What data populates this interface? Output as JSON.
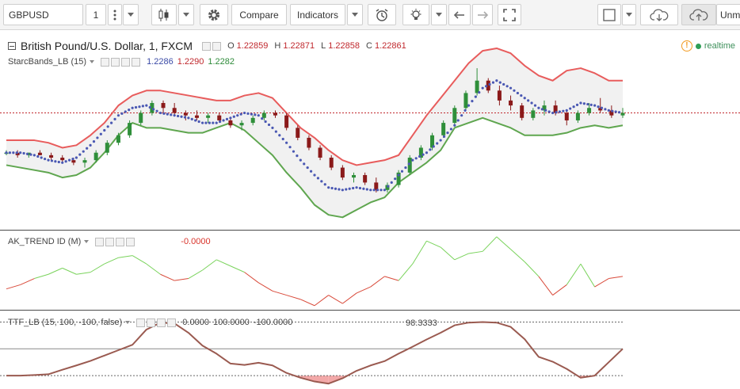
{
  "toolbar": {
    "symbol": "GBPUSD",
    "interval": "1",
    "compare_label": "Compare",
    "indicators_label": "Indicators",
    "cut_text": "Unm"
  },
  "main_legend": {
    "title": "British Pound/U.S. Dollar, 1, FXCM",
    "o_label": "O",
    "o_value": "1.22859",
    "h_label": "H",
    "h_value": "1.22871",
    "l_label": "L",
    "l_value": "1.22858",
    "c_label": "C",
    "c_value": "1.22861",
    "realtime": "realtime"
  },
  "starc_legend": {
    "name": "StarcBands_LB (15)",
    "mid": "1.2286",
    "upper": "1.2290",
    "lower": "1.2282"
  },
  "ak_legend": {
    "name": "AK_TREND ID (M)",
    "value": "-0.0000"
  },
  "ttf_legend": {
    "name": "TTF_LB (15, 100, -100, false)",
    "v1": "0.0000",
    "v2": "100.0000",
    "v3": "-100.0000",
    "annotation": "98.3333"
  },
  "colors": {
    "up_candle": "#2f8f3a",
    "down_candle": "#8b1a1a",
    "upper_band": "#e85c5c",
    "lower_band": "#5fa64f",
    "mid_dots": "#4a58b3",
    "ak_pos": "#7ad35c",
    "ak_neg": "#d94a3a",
    "ttf_line": "#9a5a50",
    "ttf_pos_fill": "#a8d8a0",
    "ttf_neg_fill": "#f2a8a8"
  },
  "chart_data": [
    {
      "type": "candlestick",
      "series": [
        {
          "name": "StarcBands_LB (15)",
          "x": [
            0,
            4,
            8,
            12,
            16,
            20,
            24,
            28,
            32,
            36,
            40,
            44,
            48,
            52,
            56,
            60,
            64,
            68,
            72,
            76,
            80,
            84,
            88,
            92,
            96,
            100,
            104,
            108,
            112,
            116,
            120,
            124,
            128,
            132,
            136,
            140,
            144,
            148,
            152,
            156,
            160,
            164,
            168,
            172,
            176
          ],
          "upper": [
            1.2276,
            1.2276,
            1.2276,
            1.2275,
            1.2273,
            1.2274,
            1.2278,
            1.2283,
            1.229,
            1.2294,
            1.2296,
            1.2296,
            1.2295,
            1.2294,
            1.2293,
            1.2292,
            1.2292,
            1.2294,
            1.2295,
            1.2293,
            1.2287,
            1.2281,
            1.2277,
            1.2272,
            1.2268,
            1.2266,
            1.2267,
            1.2268,
            1.227,
            1.2278,
            1.2286,
            1.2293,
            1.23,
            1.2307,
            1.2312,
            1.2313,
            1.2311,
            1.2306,
            1.2302,
            1.23,
            1.2304,
            1.2305,
            1.2303,
            1.23,
            1.23
          ],
          "mid": [
            1.2271,
            1.2271,
            1.227,
            1.2268,
            1.2267,
            1.2269,
            1.2274,
            1.228,
            1.2286,
            1.2289,
            1.229,
            1.2287,
            1.2286,
            1.2285,
            1.2283,
            1.2283,
            1.2285,
            1.2287,
            1.2286,
            1.2281,
            1.2275,
            1.2268,
            1.2262,
            1.2257,
            1.2256,
            1.2257,
            1.2256,
            1.2256,
            1.2262,
            1.2268,
            1.2271,
            1.2276,
            1.2282,
            1.229,
            1.2297,
            1.23,
            1.2297,
            1.2293,
            1.2289,
            1.2287,
            1.2288,
            1.2291,
            1.229,
            1.2288,
            1.2287
          ],
          "lower": [
            1.2266,
            1.2265,
            1.2264,
            1.2263,
            1.2261,
            1.2262,
            1.2265,
            1.2271,
            1.2278,
            1.2283,
            1.2281,
            1.2281,
            1.228,
            1.2279,
            1.2279,
            1.2281,
            1.2283,
            1.228,
            1.2275,
            1.227,
            1.2263,
            1.2257,
            1.225,
            1.2246,
            1.2245,
            1.2248,
            1.2251,
            1.2253,
            1.2259,
            1.2263,
            1.2267,
            1.2272,
            1.2281,
            1.2283,
            1.2285,
            1.2283,
            1.2281,
            1.2278,
            1.2278,
            1.2278,
            1.2279,
            1.2281,
            1.2282,
            1.2281,
            1.2282
          ]
        }
      ],
      "candles": [
        [
          0,
          1.2271,
          1.2272,
          1.227,
          1.2271
        ],
        [
          2,
          1.2271,
          1.2272,
          1.2269,
          1.227
        ],
        [
          4,
          1.227,
          1.2271,
          1.2269,
          1.2271
        ],
        [
          6,
          1.2271,
          1.2272,
          1.227,
          1.227
        ],
        [
          8,
          1.227,
          1.2271,
          1.2268,
          1.2269
        ],
        [
          10,
          1.2269,
          1.227,
          1.2267,
          1.2268
        ],
        [
          12,
          1.2268,
          1.2269,
          1.2266,
          1.2267
        ],
        [
          14,
          1.2267,
          1.2269,
          1.2265,
          1.2268
        ],
        [
          16,
          1.2268,
          1.2272,
          1.2267,
          1.2271
        ],
        [
          18,
          1.2271,
          1.2276,
          1.227,
          1.2275
        ],
        [
          20,
          1.2275,
          1.2279,
          1.2274,
          1.2278
        ],
        [
          22,
          1.2278,
          1.2284,
          1.2277,
          1.2283
        ],
        [
          24,
          1.2283,
          1.2288,
          1.2282,
          1.2287
        ],
        [
          26,
          1.2287,
          1.2292,
          1.2286,
          1.2291
        ],
        [
          28,
          1.2291,
          1.2292,
          1.2287,
          1.2289
        ],
        [
          30,
          1.2289,
          1.2291,
          1.2286,
          1.2287
        ],
        [
          32,
          1.2287,
          1.2288,
          1.2284,
          1.2286
        ],
        [
          34,
          1.2286,
          1.2288,
          1.2284,
          1.2285
        ],
        [
          36,
          1.2285,
          1.2287,
          1.2283,
          1.2286
        ],
        [
          38,
          1.2286,
          1.2287,
          1.2283,
          1.2284
        ],
        [
          40,
          1.2284,
          1.2285,
          1.2281,
          1.2282
        ],
        [
          42,
          1.2282,
          1.2284,
          1.228,
          1.2283
        ],
        [
          44,
          1.2283,
          1.2286,
          1.2282,
          1.2285
        ],
        [
          46,
          1.2285,
          1.2288,
          1.2284,
          1.2287
        ],
        [
          48,
          1.2287,
          1.2288,
          1.2285,
          1.2286
        ],
        [
          50,
          1.2286,
          1.2287,
          1.228,
          1.2281
        ],
        [
          52,
          1.2281,
          1.2282,
          1.2276,
          1.2277
        ],
        [
          54,
          1.2277,
          1.2278,
          1.2272,
          1.2273
        ],
        [
          56,
          1.2273,
          1.2274,
          1.2268,
          1.2269
        ],
        [
          58,
          1.2269,
          1.227,
          1.2264,
          1.2265
        ],
        [
          60,
          1.2265,
          1.2266,
          1.226,
          1.2261
        ],
        [
          62,
          1.2261,
          1.2263,
          1.2259,
          1.2262
        ],
        [
          64,
          1.2262,
          1.2263,
          1.2258,
          1.2259
        ],
        [
          66,
          1.2259,
          1.2261,
          1.2255,
          1.2256
        ],
        [
          68,
          1.2256,
          1.2259,
          1.2255,
          1.2258
        ],
        [
          70,
          1.2258,
          1.2264,
          1.2257,
          1.2263
        ],
        [
          72,
          1.2263,
          1.227,
          1.2262,
          1.2269
        ],
        [
          74,
          1.2269,
          1.2274,
          1.2268,
          1.2273
        ],
        [
          76,
          1.2273,
          1.2279,
          1.2272,
          1.2278
        ],
        [
          78,
          1.2278,
          1.2284,
          1.2277,
          1.2283
        ],
        [
          80,
          1.2283,
          1.229,
          1.2282,
          1.2289
        ],
        [
          82,
          1.2289,
          1.2296,
          1.2288,
          1.2295
        ],
        [
          84,
          1.2295,
          1.2305,
          1.2294,
          1.23
        ],
        [
          86,
          1.23,
          1.2301,
          1.2295,
          1.2296
        ],
        [
          88,
          1.2296,
          1.2298,
          1.229,
          1.2292
        ],
        [
          90,
          1.2292,
          1.2294,
          1.2288,
          1.229
        ],
        [
          92,
          1.229,
          1.2291,
          1.2284,
          1.2285
        ],
        [
          94,
          1.2285,
          1.2289,
          1.2284,
          1.2288
        ],
        [
          96,
          1.2288,
          1.2292,
          1.2286,
          1.229
        ],
        [
          98,
          1.229,
          1.2292,
          1.2286,
          1.2287
        ],
        [
          100,
          1.2287,
          1.2288,
          1.2282,
          1.2284
        ],
        [
          102,
          1.2284,
          1.2288,
          1.2283,
          1.2287
        ],
        [
          104,
          1.2287,
          1.2291,
          1.2286,
          1.2289
        ],
        [
          106,
          1.2289,
          1.2293,
          1.2287,
          1.2288
        ],
        [
          108,
          1.2288,
          1.229,
          1.2285,
          1.2286
        ],
        [
          110,
          1.2286,
          1.2289,
          1.2285,
          1.2287
        ]
      ],
      "ylim": [
        1.224,
        1.232
      ]
    },
    {
      "type": "line",
      "series": [
        {
          "name": "AK_TREND ID (M)",
          "x": [
            0,
            4,
            8,
            12,
            16,
            20,
            24,
            28,
            32,
            36,
            40,
            44,
            48,
            52,
            56,
            60,
            64,
            68,
            72,
            76,
            80,
            84,
            88,
            92,
            96,
            100,
            104,
            108,
            112,
            116,
            120,
            124,
            128,
            132,
            136,
            140,
            144,
            148,
            152,
            156,
            160,
            164,
            168,
            172,
            176
          ],
          "values": [
            -0.6,
            -0.4,
            -0.1,
            0.1,
            0.4,
            0.1,
            0.2,
            0.6,
            0.9,
            1.0,
            0.6,
            0.1,
            -0.2,
            -0.1,
            0.3,
            0.8,
            0.5,
            0.2,
            -0.3,
            -0.7,
            -0.9,
            -1.1,
            -1.4,
            -0.9,
            -1.3,
            -0.8,
            -0.5,
            0.0,
            -0.2,
            0.6,
            1.7,
            1.4,
            0.8,
            1.1,
            1.2,
            1.9,
            1.3,
            0.7,
            0.0,
            -0.9,
            -0.4,
            0.6,
            -0.5,
            -0.1,
            0.0
          ]
        }
      ],
      "ylim": [
        -1.6,
        2.2
      ]
    },
    {
      "type": "area",
      "series": [
        {
          "name": "TTF_LB (15, 100, -100, false)",
          "x": [
            0,
            4,
            8,
            12,
            16,
            20,
            24,
            28,
            32,
            36,
            40,
            44,
            48,
            52,
            56,
            60,
            64,
            68,
            72,
            76,
            80,
            84,
            88,
            92,
            96,
            100,
            104,
            108,
            112,
            116,
            120,
            124,
            128,
            132,
            136,
            140,
            144,
            148,
            152,
            156,
            160,
            164,
            168,
            172,
            176
          ],
          "values": [
            -100,
            -100,
            -98,
            -95,
            -78,
            -62,
            -45,
            -25,
            -5,
            15,
            72,
            98,
            95,
            60,
            12,
            -18,
            -55,
            -60,
            -52,
            -62,
            -90,
            -108,
            -122,
            -130,
            -110,
            -82,
            -62,
            -46,
            -18,
            8,
            35,
            60,
            88,
            98,
            100,
            98,
            82,
            36,
            -30,
            -48,
            -75,
            -108,
            -100,
            -50,
            0
          ]
        }
      ],
      "reference_lines": [
        100,
        0,
        -100
      ],
      "ylim": [
        -150,
        140
      ]
    }
  ]
}
